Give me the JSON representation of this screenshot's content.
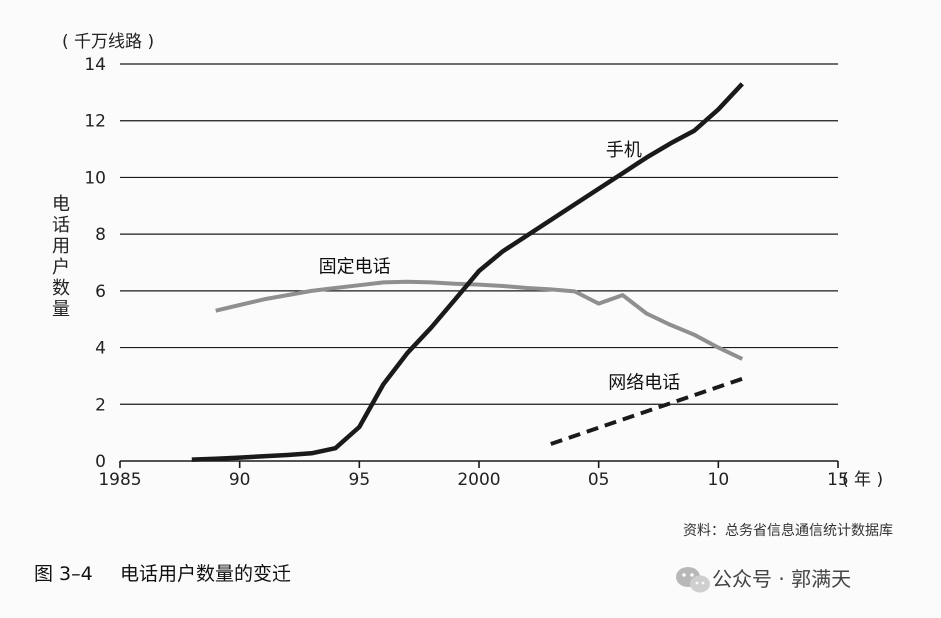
{
  "chart_data": {
    "type": "line",
    "y_unit": "( 千万线路 )",
    "ylabel": "电话用户数量",
    "x_unit": "( 年 )",
    "x_ticks": [
      {
        "value": 1985,
        "label": "1985"
      },
      {
        "value": 1990,
        "label": "90"
      },
      {
        "value": 1995,
        "label": "95"
      },
      {
        "value": 2000,
        "label": "2000"
      },
      {
        "value": 2005,
        "label": "05"
      },
      {
        "value": 2010,
        "label": "10"
      },
      {
        "value": 2015,
        "label": "15"
      }
    ],
    "y_ticks": [
      0,
      2,
      4,
      6,
      8,
      10,
      12,
      14
    ],
    "xlim": [
      1985,
      2015
    ],
    "ylim": [
      0,
      14
    ],
    "grid": true,
    "series": [
      {
        "name": "手机",
        "style": "solid",
        "color": "#1a1a1a",
        "x": [
          1988,
          1989,
          1990,
          1991,
          1992,
          1993,
          1994,
          1995,
          1996,
          1997,
          1998,
          1999,
          2000,
          2001,
          2002,
          2003,
          2004,
          2005,
          2006,
          2007,
          2008,
          2009,
          2010,
          2011
        ],
        "y": [
          0.05,
          0.08,
          0.12,
          0.17,
          0.21,
          0.27,
          0.45,
          1.2,
          2.7,
          3.8,
          4.7,
          5.7,
          6.7,
          7.4,
          7.95,
          8.5,
          9.05,
          9.6,
          10.15,
          10.7,
          11.2,
          11.65,
          12.4,
          13.3
        ]
      },
      {
        "name": "固定电话",
        "style": "solid",
        "color": "#8f8f8f",
        "x": [
          1989,
          1990,
          1991,
          1992,
          1993,
          1994,
          1995,
          1996,
          1997,
          1998,
          1999,
          2000,
          2001,
          2002,
          2003,
          2004,
          2005,
          2006,
          2007,
          2008,
          2009,
          2010,
          2011
        ],
        "y": [
          5.3,
          5.5,
          5.7,
          5.85,
          6.0,
          6.1,
          6.2,
          6.3,
          6.32,
          6.3,
          6.25,
          6.22,
          6.17,
          6.1,
          6.05,
          5.98,
          5.55,
          5.85,
          5.2,
          4.8,
          4.45,
          4.0,
          3.6
        ]
      },
      {
        "name": "网络电话",
        "style": "dashed",
        "color": "#1a1a1a",
        "x": [
          2003,
          2011
        ],
        "y": [
          0.6,
          2.9
        ]
      }
    ],
    "series_label_positions": [
      {
        "name": "手机",
        "at_x": 2005.3,
        "at_y": 10.75
      },
      {
        "name": "固定电话",
        "at_x": 1993.3,
        "at_y": 6.65
      },
      {
        "name": "网络电话",
        "at_x": 2005.4,
        "at_y": 2.55
      }
    ]
  },
  "source_note": "资料：总务省信息通信统计数据库",
  "caption": {
    "figure_number": "图 3–4",
    "title": "电话用户数量的变迁"
  },
  "watermark": {
    "text": "公众号 · 郭满天",
    "icon": "wechat-icon"
  }
}
